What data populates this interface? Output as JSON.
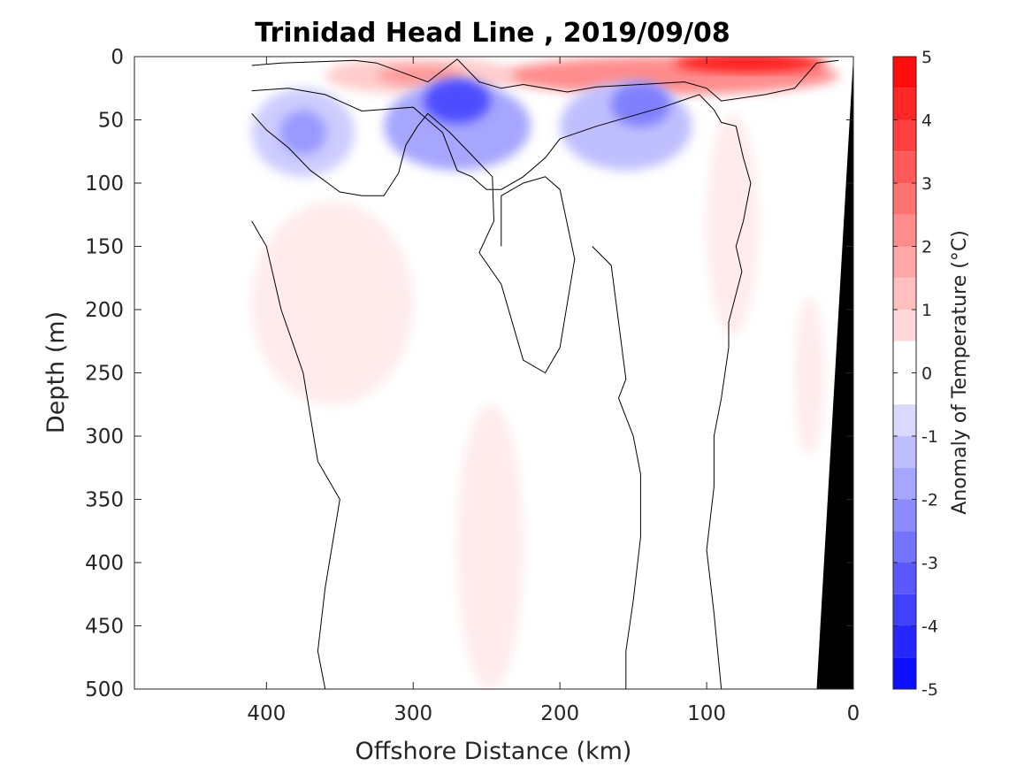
{
  "chart_data": {
    "type": "heatmap",
    "title": "Trinidad Head Line , 2019/09/08",
    "xlabel": "Offshore Distance (km)",
    "ylabel": "Depth (m)",
    "xlim": [
      490,
      0
    ],
    "ylim": [
      0,
      500
    ],
    "x_reversed": true,
    "y_reversed": true,
    "x_ticks": [
      400,
      300,
      200,
      100,
      0
    ],
    "y_ticks": [
      0,
      50,
      100,
      150,
      200,
      250,
      300,
      350,
      400,
      450,
      500
    ],
    "colorbar": {
      "label": "Anomaly of Temperature (°C)",
      "range": [
        -5,
        5
      ],
      "step": 0.5,
      "ticks": [
        5,
        4,
        3,
        2,
        1,
        0,
        -1,
        -2,
        -3,
        -4,
        -5
      ],
      "max_color": "#ff0000",
      "min_color": "#0000ff",
      "neutral_color": "#ffffff"
    },
    "contour_level": 0,
    "features": [
      {
        "name": "surface warm band",
        "x_range": [
          10,
          240
        ],
        "depth_range": [
          0,
          30
        ],
        "peak_value": 4.5,
        "peak_x": 70,
        "peak_depth": 5
      },
      {
        "name": "nearshore warm patch",
        "x_range": [
          230,
          360
        ],
        "depth_range": [
          0,
          30
        ],
        "peak_value": 2.0
      },
      {
        "name": "subsurface cool core A",
        "x_range": [
          220,
          320
        ],
        "depth_range": [
          20,
          90
        ],
        "peak_value": -3.5,
        "peak_x": 270,
        "peak_depth": 35
      },
      {
        "name": "subsurface cool core B",
        "x_range": [
          110,
          200
        ],
        "depth_range": [
          20,
          90
        ],
        "peak_value": -2.5,
        "peak_x": 145,
        "peak_depth": 38
      },
      {
        "name": "offshore cool band",
        "x_range": [
          340,
          410
        ],
        "depth_range": [
          25,
          95
        ],
        "peak_value": -2.0
      },
      {
        "name": "mid-depth warm lobe",
        "x_range": [
          300,
          410
        ],
        "depth_range": [
          115,
          275
        ],
        "peak_value": 0.8
      },
      {
        "name": "deep warm column",
        "x_range": [
          225,
          270
        ],
        "depth_range": [
          275,
          500
        ],
        "peak_value": 0.8
      },
      {
        "name": "nearshore warm column",
        "x_range": [
          65,
          100
        ],
        "depth_range": [
          45,
          220
        ],
        "peak_value": 0.8
      },
      {
        "name": "coastal warm strip",
        "x_range": [
          20,
          40
        ],
        "depth_range": [
          190,
          315
        ],
        "peak_value": 0.8
      }
    ],
    "data_start_x": 410,
    "bathymetry": {
      "color": "#000000",
      "points": [
        [
          0,
          0
        ],
        [
          0,
          500
        ],
        [
          25,
          500
        ]
      ]
    }
  }
}
